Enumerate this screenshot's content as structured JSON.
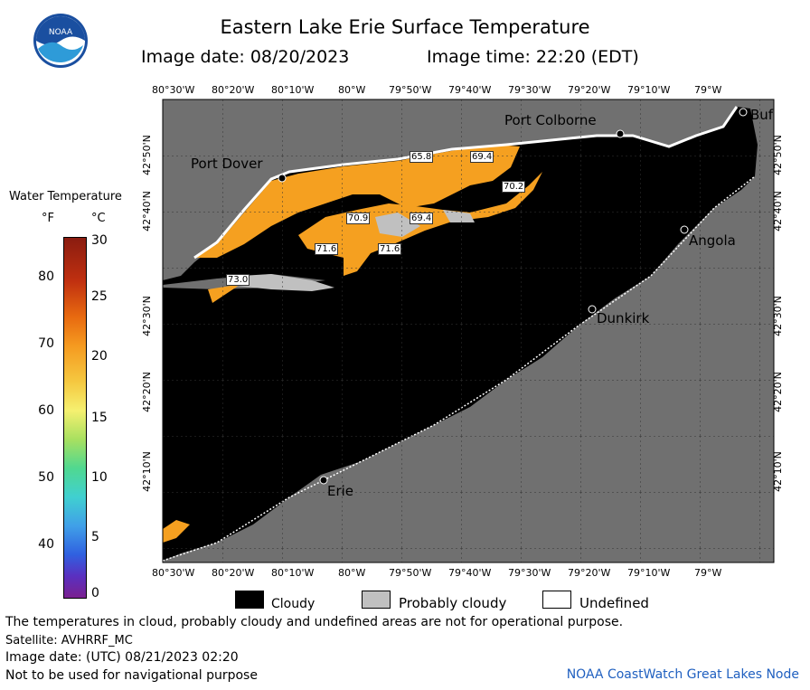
{
  "header": {
    "title": "Eastern Lake Erie Surface Temperature",
    "image_date": "Image date: 08/20/2023",
    "image_time": "Image time: 22:20 (EDT)"
  },
  "logo": {
    "text": "NOAA",
    "icon": "noaa-logo-icon"
  },
  "legend": {
    "title": "Water Temperature",
    "unit_f": "°F",
    "unit_c": "°C",
    "f_ticks": [
      "80",
      "70",
      "60",
      "50",
      "40"
    ],
    "c_ticks": [
      "30",
      "25",
      "20",
      "15",
      "10",
      "5",
      "0"
    ]
  },
  "axes": {
    "lon_labels": [
      "80°30'W",
      "80°20'W",
      "80°10'W",
      "80°W",
      "79°50'W",
      "79°40'W",
      "79°30'W",
      "79°20'W",
      "79°10'W",
      "79°W"
    ],
    "lat_labels": [
      "42°50'N",
      "42°40'N",
      "42°30'N",
      "42°20'N",
      "42°10'N"
    ]
  },
  "places": {
    "port_dover": "Port Dover",
    "port_colborne": "Port Colborne",
    "buffalo": "Buf",
    "angola": "Angola",
    "dunkirk": "Dunkirk",
    "erie": "Erie"
  },
  "temperature_labels": [
    "65.8",
    "69.4",
    "70.2",
    "70.9",
    "69.4",
    "71.6",
    "71.6",
    "73.0"
  ],
  "key": {
    "cloudy": "Cloudy",
    "probably_cloudy": "Probably cloudy",
    "undefined": "Undefined",
    "colors": {
      "cloudy": "#000000",
      "probably_cloudy": "#c0c0c0",
      "undefined": "#ffffff",
      "land": "#707070",
      "water_warm": "#f5a020"
    }
  },
  "footer": {
    "disclaimer": "The temperatures in cloud, probably cloudy and undefined areas are not for operational purpose.",
    "satellite": "Satellite: AVHRRF_MC",
    "utc_date": "Image date: (UTC) 08/21/2023  02:20",
    "nav_warning": "Not to be used for navigational purpose",
    "credit": "NOAA CoastWatch Great Lakes Node"
  }
}
